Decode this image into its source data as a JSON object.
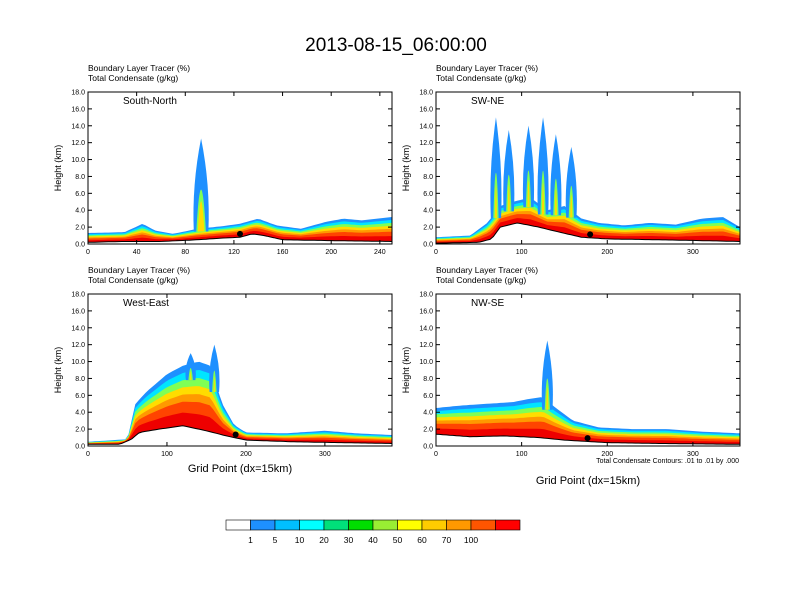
{
  "title": "2013-08-15_06:00:00",
  "panel_header": {
    "line1_label": "Boundary Layer Tracer",
    "line1_unit": "(%)",
    "line2_label": "Total Condensate",
    "line2_unit": "(g/kg)"
  },
  "ylabel": "Height (km)",
  "xlabel": "Grid Point (dx=15km)",
  "contour_note": "Total Condensate Contours: .01 to .01 by .000",
  "colorbar": {
    "labels": [
      "1",
      "5",
      "10",
      "20",
      "30",
      "40",
      "50",
      "60",
      "70",
      "100"
    ],
    "colors": [
      "#ffffff",
      "#1e90ff",
      "#00bfff",
      "#00ffff",
      "#00e07a",
      "#00dd00",
      "#99ee33",
      "#ffff00",
      "#ffcc00",
      "#ff9900",
      "#ff5500",
      "#ff0000"
    ]
  },
  "chart_data": [
    {
      "type": "heatmap",
      "name": "South-North",
      "xlim": [
        0,
        250
      ],
      "ylim": [
        0,
        18
      ],
      "xticks": [
        "0",
        "40",
        "80",
        "120",
        "160",
        "200",
        "240"
      ],
      "xtick_values": [
        0,
        40,
        80,
        120,
        160,
        200,
        240
      ],
      "yticks": [
        "0.0",
        "2.0",
        "4.0",
        "6.0",
        "8.0",
        "10.0",
        "12.0",
        "14.0",
        "16.0",
        "18.0"
      ],
      "terrain_km": [
        [
          0,
          0.2
        ],
        [
          30,
          0.3
        ],
        [
          60,
          0.3
        ],
        [
          90,
          0.5
        ],
        [
          110,
          0.7
        ],
        [
          125,
          0.8
        ],
        [
          135,
          1.2
        ],
        [
          145,
          1.0
        ],
        [
          160,
          0.5
        ],
        [
          200,
          0.4
        ],
        [
          250,
          0.3
        ]
      ],
      "bl_top_km": [
        [
          0,
          1.3
        ],
        [
          30,
          1.4
        ],
        [
          45,
          2.4
        ],
        [
          55,
          1.6
        ],
        [
          70,
          1.2
        ],
        [
          90,
          1.8
        ],
        [
          110,
          2.1
        ],
        [
          125,
          2.4
        ],
        [
          140,
          3.0
        ],
        [
          155,
          2.2
        ],
        [
          175,
          1.8
        ],
        [
          195,
          2.6
        ],
        [
          210,
          3.0
        ],
        [
          225,
          2.8
        ],
        [
          250,
          3.2
        ]
      ],
      "deep_convection": [
        {
          "x": 93,
          "top_km": 12.5
        }
      ],
      "marker_x": 125
    },
    {
      "type": "heatmap",
      "name": "SW-NE",
      "xlim": [
        0,
        355
      ],
      "ylim": [
        0,
        18
      ],
      "xticks": [
        "0",
        "100",
        "200",
        "300"
      ],
      "xtick_values": [
        0,
        100,
        200,
        300
      ],
      "yticks": [
        "0.0",
        "2.0",
        "4.0",
        "6.0",
        "8.0",
        "10.0",
        "12.0",
        "14.0",
        "16.0",
        "18.0"
      ],
      "terrain_km": [
        [
          0,
          0.1
        ],
        [
          50,
          0.2
        ],
        [
          65,
          0.6
        ],
        [
          75,
          2.0
        ],
        [
          95,
          2.5
        ],
        [
          120,
          2.0
        ],
        [
          140,
          1.5
        ],
        [
          170,
          0.8
        ],
        [
          200,
          0.6
        ],
        [
          260,
          0.5
        ],
        [
          310,
          0.4
        ],
        [
          355,
          0.3
        ]
      ],
      "bl_top_km": [
        [
          0,
          0.8
        ],
        [
          40,
          1.0
        ],
        [
          60,
          2.5
        ],
        [
          75,
          4.5
        ],
        [
          90,
          5.0
        ],
        [
          110,
          5.5
        ],
        [
          130,
          4.0
        ],
        [
          150,
          4.5
        ],
        [
          170,
          3.0
        ],
        [
          190,
          2.5
        ],
        [
          220,
          2.2
        ],
        [
          250,
          2.5
        ],
        [
          280,
          2.3
        ],
        [
          310,
          3.0
        ],
        [
          335,
          3.2
        ],
        [
          355,
          2.0
        ]
      ],
      "deep_convection": [
        {
          "x": 70,
          "top_km": 15.0
        },
        {
          "x": 85,
          "top_km": 13.5
        },
        {
          "x": 108,
          "top_km": 14.0
        },
        {
          "x": 125,
          "top_km": 15.0
        },
        {
          "x": 140,
          "top_km": 13.0
        },
        {
          "x": 158,
          "top_km": 11.5
        }
      ],
      "marker_x": 180
    },
    {
      "type": "heatmap",
      "name": "West-East",
      "xlim": [
        0,
        385
      ],
      "ylim": [
        0,
        18
      ],
      "xticks": [
        "0",
        "100",
        "200",
        "300"
      ],
      "xtick_values": [
        0,
        100,
        200,
        300
      ],
      "yticks": [
        "0.0",
        "2.0",
        "4.0",
        "6.0",
        "8.0",
        "10.0",
        "12.0",
        "14.0",
        "16.0",
        "18.0"
      ],
      "terrain_km": [
        [
          0,
          0.2
        ],
        [
          40,
          0.2
        ],
        [
          55,
          0.8
        ],
        [
          65,
          1.6
        ],
        [
          90,
          2.0
        ],
        [
          120,
          2.4
        ],
        [
          150,
          1.8
        ],
        [
          175,
          1.2
        ],
        [
          200,
          0.7
        ],
        [
          260,
          0.5
        ],
        [
          320,
          0.4
        ],
        [
          385,
          0.3
        ]
      ],
      "bl_top_km": [
        [
          0,
          0.5
        ],
        [
          50,
          0.8
        ],
        [
          60,
          5.0
        ],
        [
          75,
          6.5
        ],
        [
          100,
          8.5
        ],
        [
          120,
          9.5
        ],
        [
          140,
          10.0
        ],
        [
          155,
          9.5
        ],
        [
          170,
          5.0
        ],
        [
          185,
          2.5
        ],
        [
          200,
          1.6
        ],
        [
          250,
          1.5
        ],
        [
          300,
          1.8
        ],
        [
          340,
          1.5
        ],
        [
          385,
          1.3
        ]
      ],
      "deep_convection": [
        {
          "x": 130,
          "top_km": 11.0
        },
        {
          "x": 160,
          "top_km": 12.0
        }
      ],
      "marker_x": 187
    },
    {
      "type": "heatmap",
      "name": "NW-SE",
      "xlim": [
        0,
        355
      ],
      "ylim": [
        0,
        18
      ],
      "xticks": [
        "0",
        "100",
        "200",
        "300"
      ],
      "xtick_values": [
        0,
        100,
        200,
        300
      ],
      "yticks": [
        "0.0",
        "2.0",
        "4.0",
        "6.0",
        "8.0",
        "10.0",
        "12.0",
        "14.0",
        "16.0",
        "18.0"
      ],
      "terrain_km": [
        [
          0,
          1.4
        ],
        [
          40,
          1.1
        ],
        [
          80,
          1.2
        ],
        [
          120,
          1.0
        ],
        [
          150,
          0.7
        ],
        [
          200,
          0.4
        ],
        [
          260,
          0.3
        ],
        [
          355,
          0.2
        ]
      ],
      "bl_top_km": [
        [
          0,
          4.5
        ],
        [
          30,
          4.8
        ],
        [
          60,
          5.0
        ],
        [
          90,
          5.2
        ],
        [
          110,
          5.6
        ],
        [
          125,
          5.8
        ],
        [
          140,
          4.5
        ],
        [
          160,
          3.0
        ],
        [
          190,
          2.2
        ],
        [
          230,
          2.0
        ],
        [
          270,
          2.0
        ],
        [
          310,
          1.7
        ],
        [
          355,
          1.5
        ]
      ],
      "deep_convection": [
        {
          "x": 130,
          "top_km": 12.5
        }
      ],
      "marker_x": 177
    }
  ]
}
